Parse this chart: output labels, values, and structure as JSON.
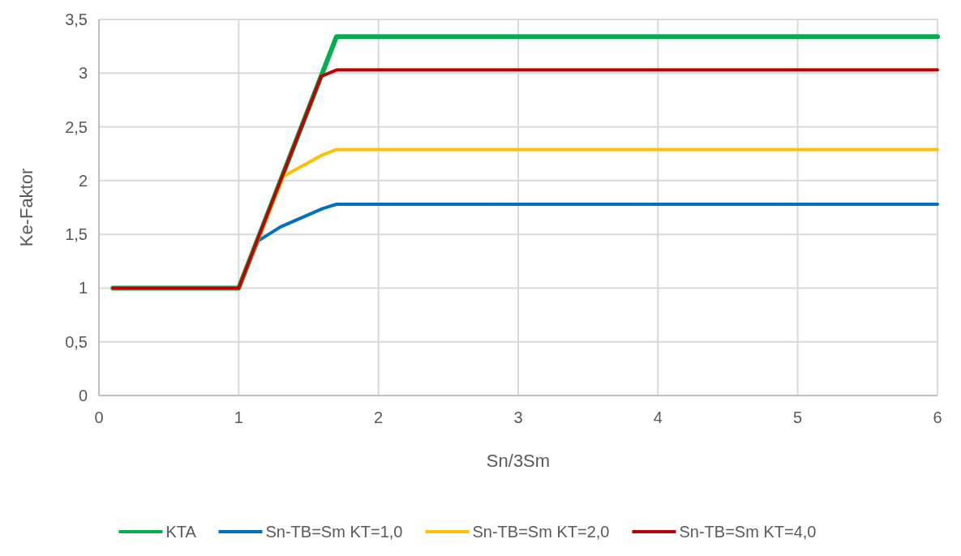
{
  "chart_data": {
    "type": "line",
    "xlabel": "Sn/3Sm",
    "ylabel": "Ke-Faktor",
    "xlim": [
      0,
      6
    ],
    "xticks": [
      0,
      1,
      2,
      3,
      4,
      5,
      6
    ],
    "ylim": [
      0,
      3.5
    ],
    "yticks": [
      0,
      {
        "value": 0.5,
        "label": "0,5"
      },
      1,
      {
        "value": 1.5,
        "label": "1,5"
      },
      2,
      {
        "value": 2.5,
        "label": "2,5"
      },
      3,
      {
        "value": 3.5,
        "label": "3,5"
      }
    ],
    "grid": true,
    "legend": "bottom",
    "line_style": "solid",
    "marker": "none",
    "series": [
      {
        "name": "KTA",
        "color": "#00b050",
        "x": [
          0.1,
          1,
          1.7,
          6
        ],
        "values": [
          1,
          1,
          3.34,
          3.34
        ]
      },
      {
        "name": "Sn-TB=Sm KT=1,0",
        "color": "#0070c0",
        "x": [
          0.1,
          1,
          1.14,
          1.3,
          1.6,
          1.7,
          6
        ],
        "values": [
          1,
          1,
          1.44,
          1.57,
          1.74,
          1.78,
          1.78
        ]
      },
      {
        "name": "Sn-TB=Sm KT=2,0",
        "color": "#ffc000",
        "x": [
          0.1,
          1,
          1.32,
          1.6,
          1.7,
          6
        ],
        "values": [
          1,
          1,
          2.04,
          2.24,
          2.29,
          2.29
        ]
      },
      {
        "name": "Sn-TB=Sm KT=4,0",
        "color": "#c00000",
        "x": [
          0.1,
          1,
          1.59,
          1.7,
          6
        ],
        "values": [
          1,
          1,
          2.97,
          3.03,
          3.03
        ]
      }
    ]
  }
}
